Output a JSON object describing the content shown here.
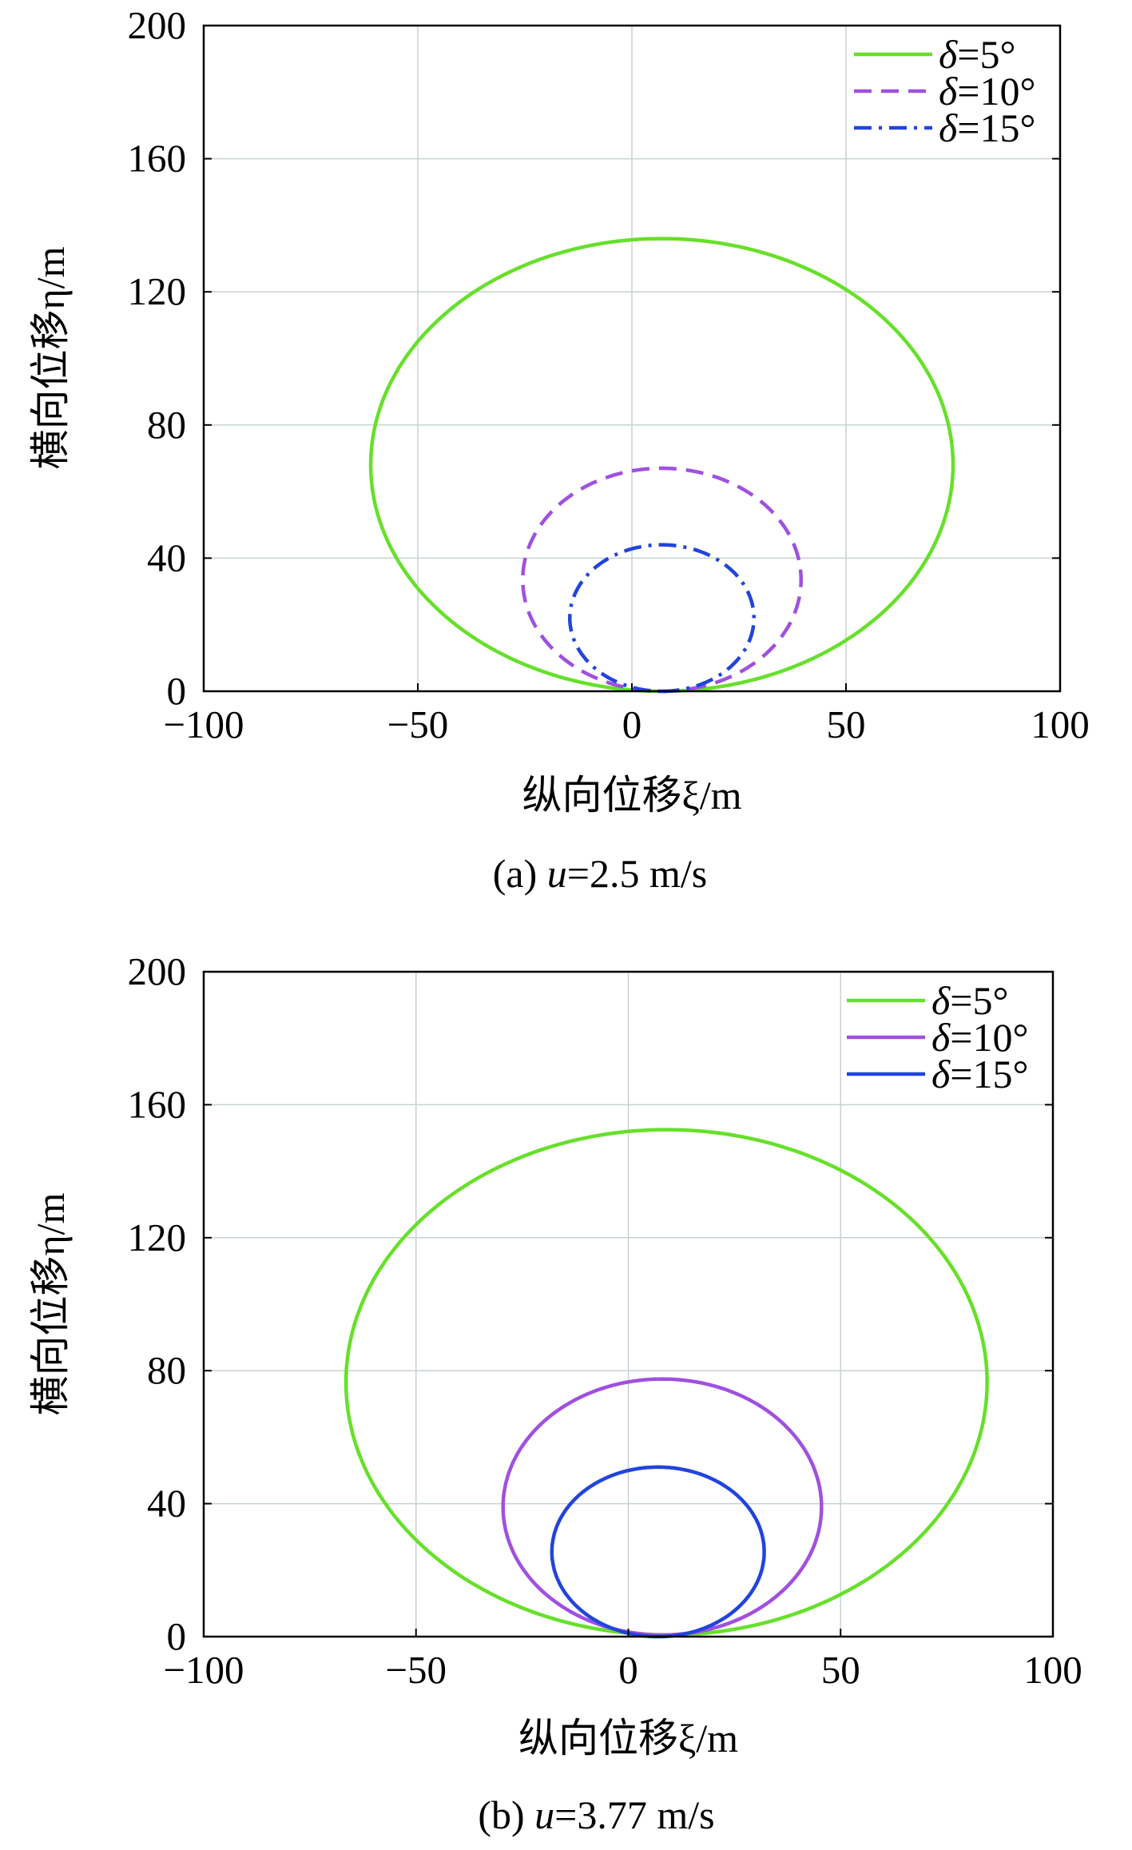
{
  "figure": {
    "xlabel": "纵向位移ξ/m",
    "ylabel": "横向位移η/m"
  },
  "chart_data": [
    {
      "type": "line",
      "caption": "(a) u=2.5 m/s",
      "caption_prefix": "(a) ",
      "caption_var": "u",
      "caption_value": "=2.5 m/s",
      "xlabel": "纵向位移ξ/m",
      "ylabel": "横向位移η/m",
      "xlim": [
        -100,
        100
      ],
      "ylim": [
        0,
        200
      ],
      "xticks": [
        -100,
        -50,
        0,
        50,
        100
      ],
      "yticks": [
        0,
        40,
        80,
        120,
        160,
        200
      ],
      "xtick_labels": [
        "−100",
        "−50",
        "0",
        "50",
        "100"
      ],
      "ytick_labels": [
        "0",
        "40",
        "80",
        "120",
        "160",
        "200"
      ],
      "grid": true,
      "legend_position": "top-right",
      "series": [
        {
          "name": "δ=5°",
          "sym": "δ",
          "value": "=5°",
          "color": "#66e02a",
          "dash": "solid",
          "center": [
            7,
            68
          ],
          "rx": 68,
          "ry": 68
        },
        {
          "name": "δ=10°",
          "sym": "δ",
          "value": "=10°",
          "color": "#a050e0",
          "dash": "dashed",
          "center": [
            7,
            33.5
          ],
          "rx": 32.5,
          "ry": 33.5
        },
        {
          "name": "δ=15°",
          "sym": "δ",
          "value": "=15°",
          "color": "#2244dd",
          "dash": "dashdot",
          "center": [
            7,
            22
          ],
          "rx": 21.5,
          "ry": 22
        }
      ]
    },
    {
      "type": "line",
      "caption": "(b) u=3.77 m/s",
      "caption_prefix": "(b) ",
      "caption_var": "u",
      "caption_value": "=3.77 m/s",
      "xlabel": "纵向位移ξ/m",
      "ylabel": "横向位移η/m",
      "xlim": [
        -100,
        100
      ],
      "ylim": [
        0,
        200
      ],
      "xticks": [
        -100,
        -50,
        0,
        50,
        100
      ],
      "yticks": [
        0,
        40,
        80,
        120,
        160,
        200
      ],
      "xtick_labels": [
        "−100",
        "−50",
        "0",
        "50",
        "100"
      ],
      "ytick_labels": [
        "0",
        "40",
        "80",
        "120",
        "160",
        "200"
      ],
      "grid": true,
      "legend_position": "top-right",
      "series": [
        {
          "name": "δ=5°",
          "sym": "δ",
          "value": "=5°",
          "color": "#66e02a",
          "dash": "solid",
          "center": [
            9,
            76.5
          ],
          "rx": 75.5,
          "ry": 76
        },
        {
          "name": "δ=10°",
          "sym": "δ",
          "value": "=10°",
          "color": "#a050e0",
          "dash": "solid",
          "center": [
            8,
            39
          ],
          "rx": 37.5,
          "ry": 38.5
        },
        {
          "name": "δ=15°",
          "sym": "δ",
          "value": "=15°",
          "color": "#2244dd",
          "dash": "solid",
          "center": [
            7,
            25.5
          ],
          "rx": 25,
          "ry": 25.5
        }
      ]
    }
  ]
}
